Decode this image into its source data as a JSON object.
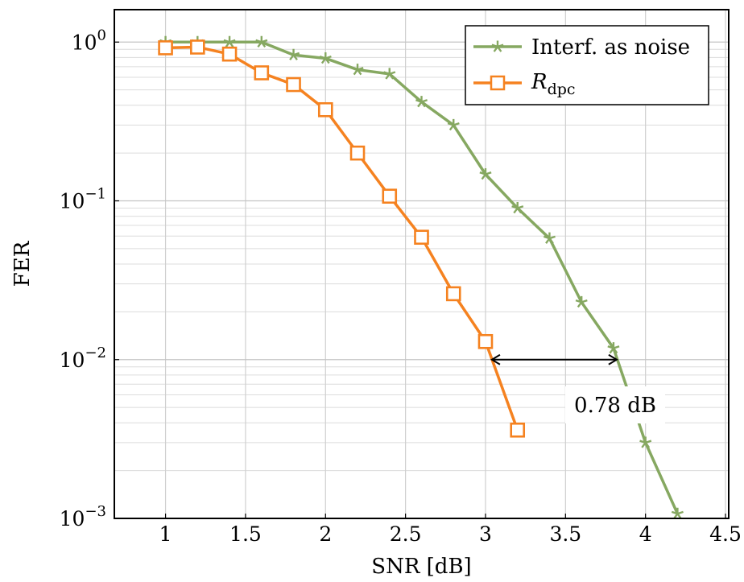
{
  "chart_data": {
    "type": "line",
    "title": "",
    "xlabel": "SNR [dB]",
    "ylabel": "FER",
    "xlim": [
      0.68,
      4.52
    ],
    "ylim": [
      0.001,
      1.6
    ],
    "yscale": "log",
    "grid": "on (major and minor)",
    "legend_position": "top-right",
    "x_ticks": [
      {
        "value": 1,
        "label": "1"
      },
      {
        "value": 1.5,
        "label": "1.5"
      },
      {
        "value": 2,
        "label": "2"
      },
      {
        "value": 2.5,
        "label": "2.5"
      },
      {
        "value": 3,
        "label": "3"
      },
      {
        "value": 3.5,
        "label": "3.5"
      },
      {
        "value": 4,
        "label": "4"
      },
      {
        "value": 4.5,
        "label": "4.5"
      }
    ],
    "y_ticks": [
      {
        "value": 1,
        "base": "10",
        "exp": "0"
      },
      {
        "value": 0.1,
        "base": "10",
        "exp": "−1"
      },
      {
        "value": 0.01,
        "base": "10",
        "exp": "−2"
      },
      {
        "value": 0.001,
        "base": "10",
        "exp": "−3"
      }
    ],
    "series": [
      {
        "name": "Interf. as noise",
        "color": "#86a861",
        "marker": "star",
        "x": [
          1.0,
          1.2,
          1.4,
          1.6,
          1.8,
          2.0,
          2.2,
          2.4,
          2.6,
          2.8,
          3.0,
          3.2,
          3.4,
          3.6,
          3.8,
          4.0,
          4.2
        ],
        "y": [
          1.0,
          1.0,
          1.0,
          1.0,
          0.83,
          0.79,
          0.67,
          0.63,
          0.42,
          0.3,
          0.147,
          0.09,
          0.058,
          0.023,
          0.0118,
          0.003,
          0.00107
        ]
      },
      {
        "name": "R_dpc",
        "name_main": "R",
        "name_sub": "dpc",
        "color": "#f58220",
        "marker": "square",
        "x": [
          1.0,
          1.2,
          1.4,
          1.6,
          1.8,
          2.0,
          2.2,
          2.4,
          2.6,
          2.8,
          3.0,
          3.2
        ],
        "y": [
          0.92,
          0.93,
          0.84,
          0.64,
          0.54,
          0.375,
          0.2,
          0.107,
          0.059,
          0.026,
          0.013,
          0.0036
        ]
      }
    ],
    "annotations": [
      {
        "text": "0.78 dB",
        "x_from": 3.04,
        "x_to": 3.82,
        "y": 0.01
      }
    ]
  }
}
